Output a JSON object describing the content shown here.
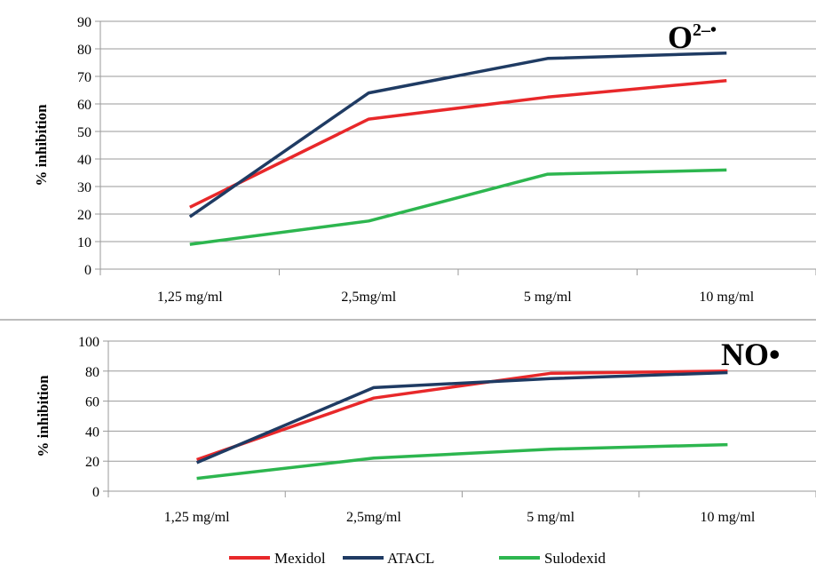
{
  "colors": {
    "Mexidol": "#e8282a",
    "ATACL": "#1f3b63",
    "Sulodexid": "#2db64f",
    "grid": "#9a9a9a",
    "axis": "#9a9a9a",
    "separator": "#a6a6a6"
  },
  "legend": [
    "Mexidol",
    "ATACL",
    "Sulodexid"
  ],
  "chart_data": [
    {
      "type": "line",
      "title": "O",
      "title_superscript": "2–•",
      "xlabel": "",
      "ylabel": "% inhibition",
      "categories": [
        "1,25 mg/ml",
        "2,5mg/ml",
        "5 mg/ml",
        "10 mg/ml"
      ],
      "ylim": [
        0,
        90
      ],
      "yticks": [
        "0",
        "10",
        "20",
        "30",
        "40",
        "50",
        "60",
        "70",
        "80",
        "90"
      ],
      "grid": true,
      "legend_position": "bottom",
      "series": [
        {
          "name": "Mexidol",
          "values": [
            22.5,
            54.5,
            62.5,
            68.5
          ]
        },
        {
          "name": "ATACL",
          "values": [
            19,
            64,
            76.5,
            78.5
          ]
        },
        {
          "name": "Sulodexid",
          "values": [
            9,
            17.5,
            34.5,
            36
          ]
        }
      ]
    },
    {
      "type": "line",
      "title": "NO•",
      "xlabel": "",
      "ylabel": "% inhibition",
      "categories": [
        "1,25 mg/ml",
        "2,5mg/ml",
        "5 mg/ml",
        "10 mg/ml"
      ],
      "ylim": [
        0,
        100
      ],
      "yticks": [
        "0",
        "20",
        "40",
        "60",
        "80",
        "100"
      ],
      "grid": true,
      "legend_position": "bottom",
      "series": [
        {
          "name": "Mexidol",
          "values": [
            21,
            62,
            78.5,
            80
          ]
        },
        {
          "name": "ATACL",
          "values": [
            19,
            69,
            75,
            79
          ]
        },
        {
          "name": "Sulodexid",
          "values": [
            8.5,
            22,
            28,
            31
          ]
        }
      ]
    }
  ]
}
